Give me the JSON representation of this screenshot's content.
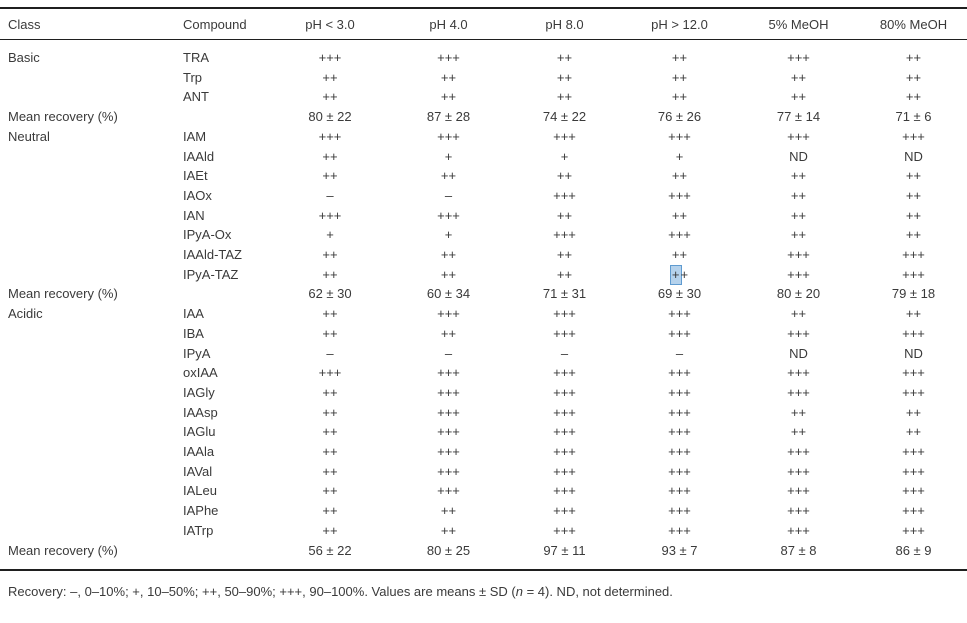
{
  "colors": {
    "text": "#3a3a3a",
    "rule": "#1f1f1f",
    "background": "#ffffff",
    "selection_fill": "#b5d2ec",
    "selection_border": "#5f9bd0"
  },
  "table": {
    "columns": [
      "Class",
      "Compound",
      "pH < 3.0",
      "pH 4.0",
      "pH 8.0",
      "pH > 12.0",
      "5% MeOH",
      "80% MeOH"
    ],
    "rows": [
      {
        "class": "Basic",
        "compound": "TRA",
        "values": [
          "+++",
          "+++",
          "++",
          "++",
          "+++",
          "++"
        ]
      },
      {
        "class": "",
        "compound": "Trp",
        "values": [
          "++",
          "++",
          "++",
          "++",
          "++",
          "++"
        ]
      },
      {
        "class": "",
        "compound": "ANT",
        "values": [
          "++",
          "++",
          "++",
          "++",
          "++",
          "++"
        ]
      },
      {
        "class": "Mean recovery (%)",
        "type": "mean",
        "compound": "",
        "values": [
          "80 ± 22",
          "87 ± 28",
          "74 ± 22",
          "76 ± 26",
          "77 ± 14",
          "71 ± 6"
        ]
      },
      {
        "class": "Neutral",
        "compound": "IAM",
        "values": [
          "+++",
          "+++",
          "+++",
          "+++",
          "+++",
          "+++"
        ]
      },
      {
        "class": "",
        "compound": "IAAld",
        "values": [
          "++",
          "+",
          "+",
          "+",
          "ND",
          "ND"
        ]
      },
      {
        "class": "",
        "compound": "IAEt",
        "values": [
          "++",
          "++",
          "++",
          "++",
          "++",
          "++"
        ]
      },
      {
        "class": "",
        "compound": "IAOx",
        "values": [
          "–",
          "–",
          "+++",
          "+++",
          "++",
          "++"
        ]
      },
      {
        "class": "",
        "compound": "IAN",
        "values": [
          "+++",
          "+++",
          "++",
          "++",
          "++",
          "++"
        ]
      },
      {
        "class": "",
        "compound": "IPyA-Ox",
        "values": [
          "+",
          "+",
          "+++",
          "+++",
          "++",
          "++"
        ]
      },
      {
        "class": "",
        "compound": "IAAld-TAZ",
        "values": [
          "++",
          "++",
          "++",
          "++",
          "+++",
          "+++"
        ]
      },
      {
        "class": "",
        "compound": "IPyA-TAZ",
        "values": [
          "++",
          "++",
          "++",
          "++",
          "+++",
          "+++"
        ],
        "highlight": {
          "col": 3,
          "char": 0
        }
      },
      {
        "class": "Mean recovery (%)",
        "type": "mean",
        "compound": "",
        "values": [
          "62 ± 30",
          "60 ± 34",
          "71 ± 31",
          "69 ± 30",
          "80 ± 20",
          "79 ± 18"
        ]
      },
      {
        "class": "Acidic",
        "compound": "IAA",
        "values": [
          "++",
          "+++",
          "+++",
          "+++",
          "++",
          "++"
        ]
      },
      {
        "class": "",
        "compound": "IBA",
        "values": [
          "++",
          "++",
          "+++",
          "+++",
          "+++",
          "+++"
        ]
      },
      {
        "class": "",
        "compound": "IPyA",
        "values": [
          "–",
          "–",
          "–",
          "–",
          "ND",
          "ND"
        ]
      },
      {
        "class": "",
        "compound": "oxIAA",
        "values": [
          "+++",
          "+++",
          "+++",
          "+++",
          "+++",
          "+++"
        ]
      },
      {
        "class": "",
        "compound": "IAGly",
        "values": [
          "++",
          "+++",
          "+++",
          "+++",
          "+++",
          "+++"
        ]
      },
      {
        "class": "",
        "compound": "IAAsp",
        "values": [
          "++",
          "+++",
          "+++",
          "+++",
          "++",
          "++"
        ]
      },
      {
        "class": "",
        "compound": "IAGlu",
        "values": [
          "++",
          "+++",
          "+++",
          "+++",
          "++",
          "++"
        ]
      },
      {
        "class": "",
        "compound": "IAAla",
        "values": [
          "++",
          "+++",
          "+++",
          "+++",
          "+++",
          "+++"
        ]
      },
      {
        "class": "",
        "compound": "IAVal",
        "values": [
          "++",
          "+++",
          "+++",
          "+++",
          "+++",
          "+++"
        ]
      },
      {
        "class": "",
        "compound": "IALeu",
        "values": [
          "++",
          "+++",
          "+++",
          "+++",
          "+++",
          "+++"
        ]
      },
      {
        "class": "",
        "compound": "IAPhe",
        "values": [
          "++",
          "++",
          "+++",
          "+++",
          "+++",
          "+++"
        ]
      },
      {
        "class": "",
        "compound": "IATrp",
        "values": [
          "++",
          "++",
          "+++",
          "+++",
          "+++",
          "+++"
        ]
      },
      {
        "class": "Mean recovery (%)",
        "type": "mean",
        "compound": "",
        "values": [
          "56 ± 22",
          "80 ± 25",
          "97 ± 11",
          "93 ± 7",
          "87 ± 8",
          "86 ± 9"
        ]
      }
    ]
  },
  "footnote": {
    "before_n": "Recovery: –, 0–10%; +, 10–50%; ++, 50–90%; +++, 90–100%. Values are means ± SD (",
    "n": "n",
    "after_n": " = 4). ND, not determined."
  }
}
